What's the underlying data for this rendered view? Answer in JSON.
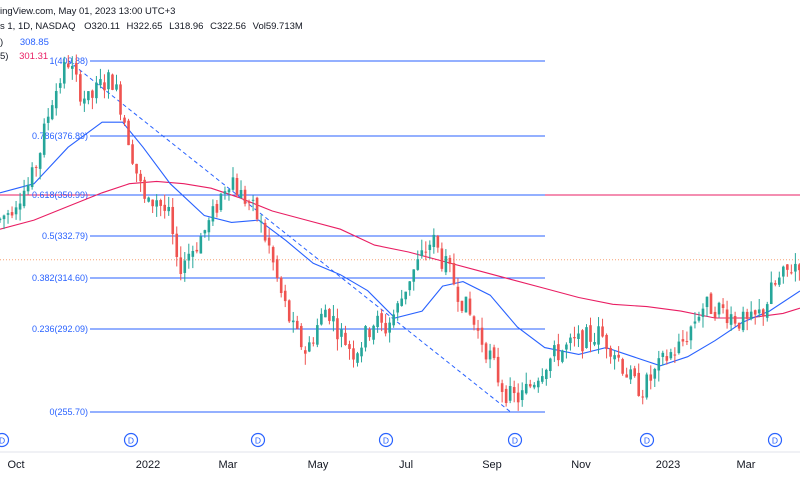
{
  "header": {
    "line1": "ingView.com, May 01, 2023 13:00 UTC+3",
    "symbol": "s 1, 1D, NASDAQ",
    "open": "O320.11",
    "high": "H322.65",
    "low": "L318.96",
    "close": "C322.56",
    "volume": "Vol59.713M",
    "ma1_label": ")",
    "ma1_value": "308.85",
    "ma2_label": "5)",
    "ma2_value": "301.31"
  },
  "chart_data": {
    "type": "candlestick",
    "x_ticks": [
      "Oct",
      "2022",
      "Mar",
      "May",
      "Jul",
      "Sep",
      "Nov",
      "2023",
      "Mar"
    ],
    "dividend_marker": "D",
    "fib_levels": [
      {
        "ratio": "1",
        "value": 409.88,
        "label": "1(409.88)"
      },
      {
        "ratio": "0.786",
        "value": 376.89,
        "label": "0.786(376.89)"
      },
      {
        "ratio": "0.618",
        "value": 350.99,
        "label": "0.618(350.99)"
      },
      {
        "ratio": "0.5",
        "value": 332.79,
        "label": "0.5(332.79)"
      },
      {
        "ratio": "0.382",
        "value": 314.6,
        "label": "0.382(314.60)"
      },
      {
        "ratio": "0.236",
        "value": 292.09,
        "label": "0.236(292.09)"
      },
      {
        "ratio": "0",
        "value": 255.7,
        "label": "0(255.70)"
      }
    ],
    "price_path": [
      [
        0,
        340
      ],
      [
        0.03,
        345
      ],
      [
        0.06,
        352
      ],
      [
        0.09,
        356
      ],
      [
        0.12,
        372
      ],
      [
        0.15,
        392
      ],
      [
        0.18,
        403
      ],
      [
        0.2,
        410
      ],
      [
        0.23,
        398
      ],
      [
        0.26,
        392
      ],
      [
        0.3,
        400
      ],
      [
        0.33,
        402
      ],
      [
        0.36,
        388
      ],
      [
        0.4,
        362
      ],
      [
        0.43,
        345
      ],
      [
        0.46,
        350
      ],
      [
        0.5,
        340
      ],
      [
        0.52,
        318
      ],
      [
        0.55,
        325
      ],
      [
        0.58,
        330
      ],
      [
        0.62,
        340
      ],
      [
        0.66,
        355
      ],
      [
        0.68,
        360
      ],
      [
        0.7,
        352
      ],
      [
        0.73,
        348
      ],
      [
        0.76,
        340
      ],
      [
        0.79,
        328
      ],
      [
        0.82,
        310
      ],
      [
        0.86,
        292
      ],
      [
        0.9,
        282
      ],
      [
        0.93,
        293
      ],
      [
        0.96,
        302
      ],
      [
        1.0,
        290
      ],
      [
        1.04,
        282
      ],
      [
        1.07,
        288
      ],
      [
        1.1,
        296
      ],
      [
        1.13,
        292
      ],
      [
        1.17,
        302
      ],
      [
        1.2,
        314
      ],
      [
        1.24,
        324
      ],
      [
        1.27,
        332
      ],
      [
        1.3,
        322
      ],
      [
        1.33,
        314
      ],
      [
        1.36,
        304
      ],
      [
        1.4,
        292
      ],
      [
        1.44,
        280
      ],
      [
        1.47,
        268
      ],
      [
        1.5,
        262
      ],
      [
        1.53,
        262
      ],
      [
        1.56,
        268
      ],
      [
        1.6,
        277
      ],
      [
        1.64,
        282
      ],
      [
        1.68,
        285
      ],
      [
        1.72,
        288
      ],
      [
        1.76,
        290
      ],
      [
        1.8,
        284
      ],
      [
        1.83,
        276
      ],
      [
        1.86,
        268
      ],
      [
        1.89,
        266
      ],
      [
        1.92,
        272
      ],
      [
        1.96,
        280
      ],
      [
        2.0,
        285
      ],
      [
        2.03,
        293
      ],
      [
        2.06,
        302
      ],
      [
        2.1,
        302
      ],
      [
        2.14,
        299
      ],
      [
        2.17,
        296
      ],
      [
        2.2,
        294
      ],
      [
        2.24,
        300
      ],
      [
        2.27,
        310
      ],
      [
        2.3,
        315
      ],
      [
        2.33,
        320
      ],
      [
        2.35,
        322.56
      ]
    ],
    "ma_fast_path": [
      [
        0,
        352
      ],
      [
        0.1,
        356
      ],
      [
        0.2,
        372
      ],
      [
        0.3,
        383
      ],
      [
        0.36,
        383
      ],
      [
        0.42,
        372
      ],
      [
        0.5,
        356
      ],
      [
        0.6,
        342
      ],
      [
        0.68,
        339
      ],
      [
        0.76,
        340
      ],
      [
        0.84,
        331
      ],
      [
        0.92,
        321
      ],
      [
        1.0,
        316
      ],
      [
        1.08,
        309
      ],
      [
        1.16,
        297
      ],
      [
        1.24,
        300
      ],
      [
        1.3,
        311
      ],
      [
        1.36,
        313
      ],
      [
        1.44,
        307
      ],
      [
        1.52,
        293
      ],
      [
        1.6,
        284
      ],
      [
        1.7,
        281
      ],
      [
        1.78,
        284
      ],
      [
        1.86,
        280
      ],
      [
        1.94,
        276
      ],
      [
        2.02,
        280
      ],
      [
        2.1,
        287
      ],
      [
        2.18,
        295
      ],
      [
        2.26,
        300
      ],
      [
        2.35,
        308.85
      ]
    ],
    "ma_slow_path": [
      [
        0,
        336
      ],
      [
        0.1,
        340
      ],
      [
        0.2,
        346
      ],
      [
        0.3,
        352
      ],
      [
        0.38,
        356
      ],
      [
        0.46,
        357
      ],
      [
        0.54,
        356
      ],
      [
        0.62,
        354
      ],
      [
        0.7,
        350
      ],
      [
        0.8,
        344
      ],
      [
        0.9,
        340
      ],
      [
        1.0,
        336
      ],
      [
        1.1,
        329
      ],
      [
        1.2,
        326
      ],
      [
        1.3,
        322
      ],
      [
        1.4,
        318
      ],
      [
        1.5,
        314
      ],
      [
        1.6,
        310
      ],
      [
        1.7,
        306
      ],
      [
        1.8,
        303
      ],
      [
        1.9,
        302
      ],
      [
        2.0,
        300
      ],
      [
        2.1,
        297
      ],
      [
        2.2,
        297
      ],
      [
        2.3,
        299
      ],
      [
        2.35,
        301.31
      ]
    ],
    "dashed_trendline": [
      [
        0.2,
        410
      ],
      [
        1.5,
        255.7
      ]
    ],
    "horizontal_line": 351,
    "dotted_line": 322.56,
    "colors": {
      "up": "#26a69a",
      "down": "#ef5350",
      "fib": "#2962ff",
      "ma_fast": "#2962ff",
      "ma_slow": "#e91e63",
      "horizontal_line": "#e91e63",
      "dotted_line": "#f7a173"
    }
  }
}
